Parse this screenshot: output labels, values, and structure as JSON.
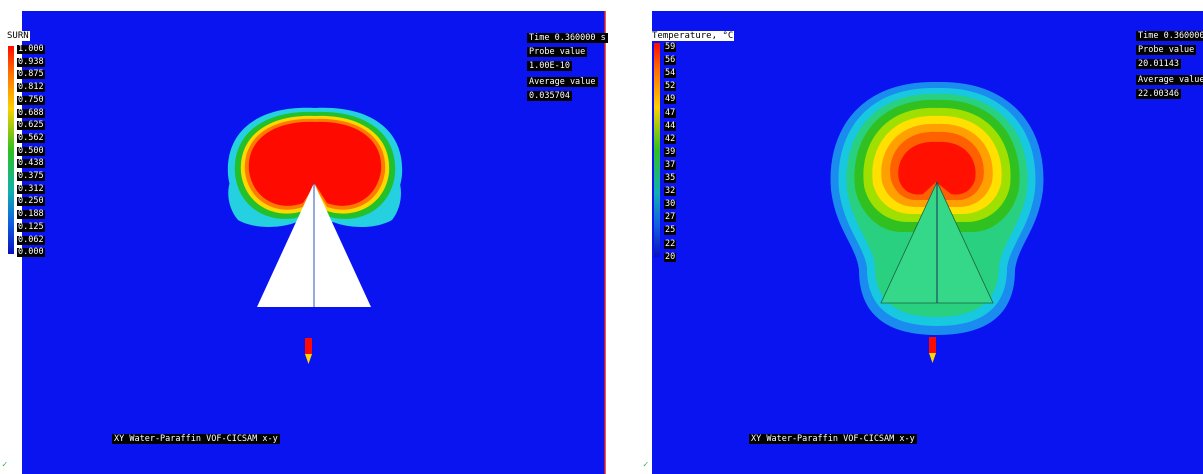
{
  "colors": {
    "field": "#0a14f0",
    "border": "#e0241b",
    "hot": "#ff0a00"
  },
  "left": {
    "legend_title": "SURN",
    "legend_values": [
      "1.000",
      "0.938",
      "0.875",
      "0.812",
      "0.750",
      "0.688",
      "0.625",
      "0.562",
      "0.500",
      "0.438",
      "0.375",
      "0.312",
      "0.250",
      "0.188",
      "0.125",
      "0.062",
      "0.000"
    ],
    "time": "Time 0.360000 s",
    "probe_label": "Probe value",
    "probe_value": "1.00E-10",
    "avg_label": "Average value",
    "avg_value": "0.035704",
    "caption": "XY Water-Paraffin VOF-CICSAM x-y"
  },
  "right": {
    "legend_title": "Temperature, °C",
    "legend_values": [
      "59",
      "56",
      "54",
      "52",
      "49",
      "47",
      "44",
      "42",
      "39",
      "37",
      "35",
      "32",
      "30",
      "27",
      "25",
      "22",
      "20"
    ],
    "time": "Time 0.360000",
    "probe_label": "Probe value",
    "probe_value": "20.01143",
    "avg_label": "Average value",
    "avg_value": "22.00346",
    "caption": "XY Water-Paraffin VOF-CICSAM x-y"
  }
}
